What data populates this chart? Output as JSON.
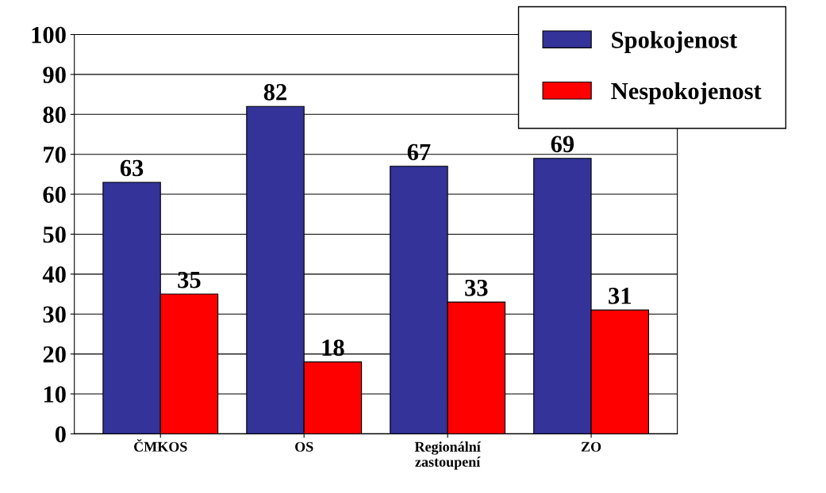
{
  "chart_data": {
    "type": "bar",
    "categories": [
      "ČMKOS",
      "OS",
      "Regionální\nzastoupení",
      "ZO"
    ],
    "series": [
      {
        "name": "Spokojenost",
        "color": "#333399",
        "values": [
          63,
          82,
          67,
          69
        ]
      },
      {
        "name": "Nespokojenost",
        "color": "#ff0000",
        "values": [
          35,
          18,
          33,
          31
        ]
      }
    ],
    "ylim": [
      0,
      100
    ],
    "yticks": [
      0,
      10,
      20,
      30,
      40,
      50,
      60,
      70,
      80,
      90,
      100
    ],
    "grid": "y",
    "legend": "top right",
    "data_labels": true
  }
}
